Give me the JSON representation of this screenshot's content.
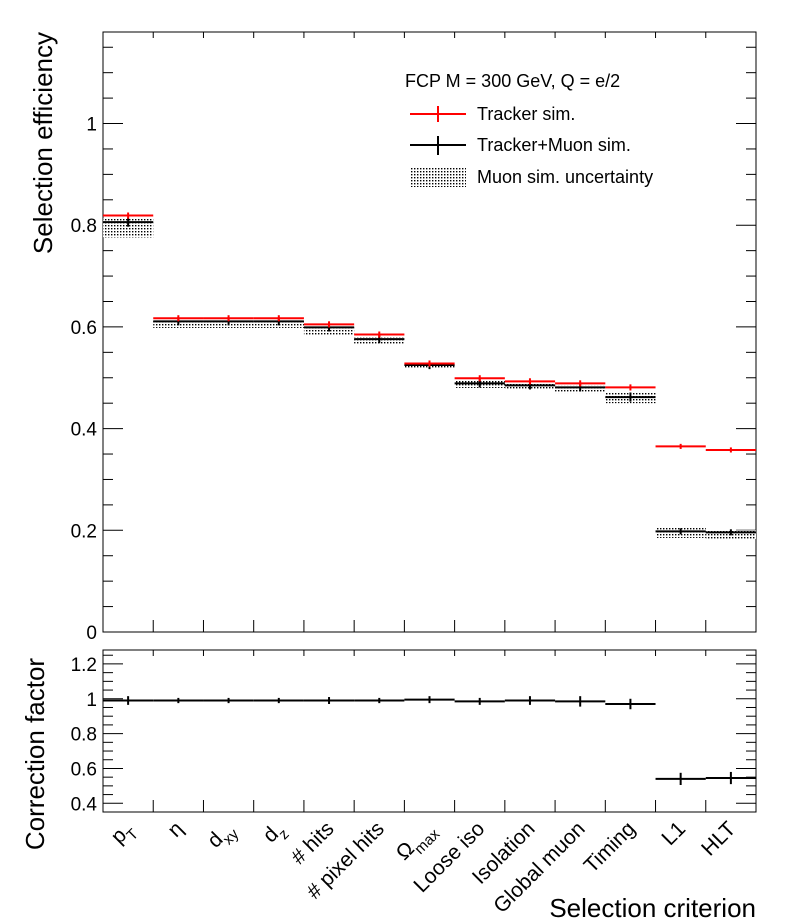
{
  "chart_data": [
    {
      "type": "bar",
      "style": "step histogram with error bars",
      "ylabel": "Selection efficiency",
      "ylim": [
        0,
        1.18
      ],
      "yticks": [
        "0",
        "0.2",
        "0.4",
        "0.6",
        "0.8",
        "1"
      ],
      "categories": [
        "p_T",
        "η",
        "d_xy",
        "d_z",
        "# hits",
        "# pixel hits",
        "Ω_max",
        "Loose iso",
        "Isolation",
        "Global muon",
        "Timing",
        "L1",
        "HLT"
      ],
      "legend": {
        "header": "FCP M = 300 GeV, Q = e/2",
        "placement": "top-right",
        "entries": [
          "Tracker sim.",
          "Tracker+Muon sim.",
          "Muon sim. uncertainty"
        ]
      },
      "series": [
        {
          "name": "Tracker sim.",
          "color": "#ff0000",
          "values": [
            0.819,
            0.617,
            0.617,
            0.617,
            0.605,
            0.585,
            0.528,
            0.499,
            0.493,
            0.489,
            0.481,
            0.365,
            0.358
          ],
          "errors": [
            0.006,
            0.006,
            0.006,
            0.006,
            0.006,
            0.006,
            0.006,
            0.006,
            0.006,
            0.006,
            0.006,
            0.005,
            0.005
          ]
        },
        {
          "name": "Tracker+Muon sim.",
          "color": "#000000",
          "values": [
            0.806,
            0.611,
            0.611,
            0.611,
            0.599,
            0.576,
            0.525,
            0.489,
            0.485,
            0.481,
            0.462,
            0.198,
            0.196
          ],
          "errors": [
            0.009,
            0.008,
            0.008,
            0.008,
            0.008,
            0.008,
            0.008,
            0.008,
            0.008,
            0.008,
            0.009,
            0.006,
            0.006
          ]
        },
        {
          "name": "Muon sim. uncertainty",
          "color": "#000000",
          "fill": "dotted",
          "low": [
            0.776,
            0.598,
            0.598,
            0.598,
            0.585,
            0.565,
            0.518,
            0.48,
            0.478,
            0.47,
            0.45,
            0.185,
            0.183
          ],
          "high": [
            0.813,
            0.614,
            0.614,
            0.614,
            0.602,
            0.58,
            0.53,
            0.495,
            0.49,
            0.485,
            0.47,
            0.205,
            0.2
          ]
        }
      ]
    },
    {
      "type": "bar",
      "style": "step histogram with error bars",
      "ylabel": "Correction factor",
      "xlabel": "Selection criterion",
      "ylim": [
        0.35,
        1.28
      ],
      "yticks": [
        "0.4",
        "0.6",
        "0.8",
        "1",
        "1.2"
      ],
      "categories": [
        "p_T",
        "η",
        "d_xy",
        "d_z",
        "# hits",
        "# pixel hits",
        "Ω_max",
        "Loose iso",
        "Isolation",
        "Global muon",
        "Timing",
        "L1",
        "HLT"
      ],
      "series": [
        {
          "color": "#000000",
          "values": [
            0.99,
            0.99,
            0.99,
            0.99,
            0.99,
            0.99,
            0.995,
            0.985,
            0.99,
            0.985,
            0.97,
            0.54,
            0.545
          ],
          "errors": [
            0.025,
            0.015,
            0.015,
            0.015,
            0.02,
            0.015,
            0.02,
            0.02,
            0.025,
            0.03,
            0.03,
            0.035,
            0.035
          ]
        }
      ]
    }
  ]
}
